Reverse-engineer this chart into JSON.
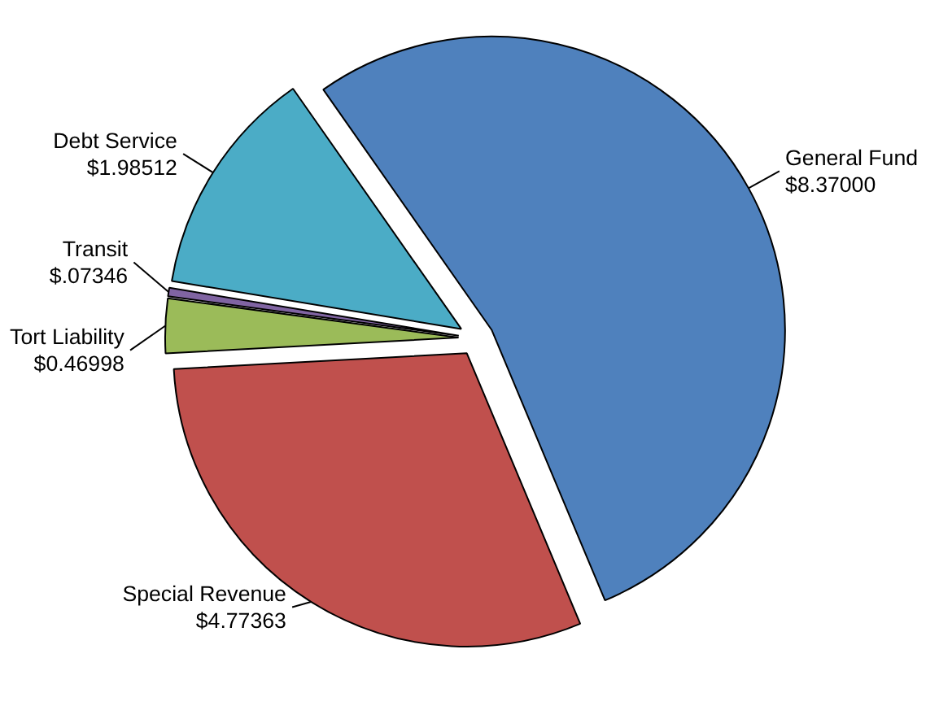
{
  "chart_data": {
    "type": "pie",
    "categories": [
      "General Fund",
      "Special Revenue",
      "Tort Liability",
      "Transit",
      "Debt Service"
    ],
    "values": [
      8.37,
      4.77363,
      0.46998,
      0.07346,
      1.98512
    ],
    "colors": [
      "#4f81bd",
      "#c0504d",
      "#9bbb59",
      "#8064a2",
      "#4bacc6"
    ],
    "value_labels": [
      "$8.37000",
      "$4.77363",
      "$0.46998",
      "$.07346",
      "$1.98512"
    ]
  }
}
